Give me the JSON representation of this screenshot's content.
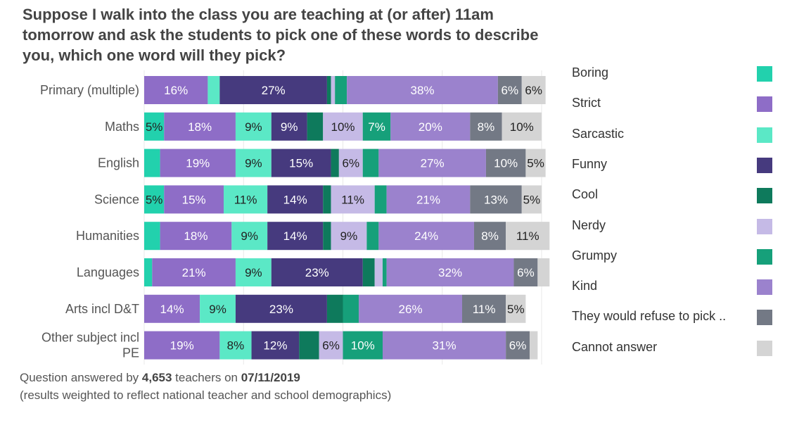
{
  "title": "Suppose I walk into the class you are teaching at (or after) 11am tomorrow and ask the students to pick one of these words to describe you, which one word will they pick?",
  "footer": {
    "line1_prefix": "Question answered by ",
    "count": "4,653",
    "line1_mid": " teachers on ",
    "date": "07/11/2019",
    "line2": "(results weighted to reflect national teacher and school demographics)"
  },
  "chart_data": {
    "type": "bar",
    "orientation": "horizontal",
    "stacked": true,
    "unit": "%",
    "xlim": [
      0,
      100
    ],
    "grid": true,
    "legend_position": "right",
    "categories": [
      "Primary (multiple)",
      "Maths",
      "English",
      "Science",
      "Humanities",
      "Languages",
      "Arts incl D&T",
      "Other subject incl PE"
    ],
    "series": [
      {
        "name": "Boring",
        "color": "#22D1AD",
        "values": [
          0,
          5,
          4,
          5,
          4,
          2,
          0,
          0
        ]
      },
      {
        "name": "Strict",
        "color": "#8E6DC7",
        "values": [
          16,
          18,
          19,
          15,
          18,
          21,
          14,
          19
        ]
      },
      {
        "name": "Sarcastic",
        "color": "#5BE8C6",
        "values": [
          3,
          9,
          9,
          11,
          9,
          9,
          9,
          8
        ]
      },
      {
        "name": "Funny",
        "color": "#463A7E",
        "values": [
          27,
          9,
          15,
          14,
          14,
          23,
          23,
          12
        ]
      },
      {
        "name": "Cool",
        "color": "#0E7A5C",
        "values": [
          1,
          4,
          2,
          2,
          2,
          3,
          4,
          5
        ]
      },
      {
        "name": "Nerdy",
        "color": "#C5BAE6",
        "values": [
          1,
          10,
          6,
          11,
          9,
          2,
          0,
          6
        ]
      },
      {
        "name": "Grumpy",
        "color": "#16A07A",
        "values": [
          3,
          7,
          4,
          3,
          3,
          1,
          4,
          10
        ]
      },
      {
        "name": "Kind",
        "color": "#9B82CD",
        "values": [
          38,
          20,
          27,
          21,
          24,
          32,
          26,
          31
        ]
      },
      {
        "name": "They would refuse to pick ..",
        "color": "#737985",
        "values": [
          6,
          8,
          10,
          13,
          8,
          6,
          11,
          6
        ]
      },
      {
        "name": "Cannot answer",
        "color": "#D4D4D4",
        "values": [
          6,
          10,
          5,
          5,
          11,
          3,
          5,
          2
        ]
      }
    ],
    "data_labels": [
      [
        null,
        "16%",
        null,
        "27%",
        null,
        null,
        null,
        "38%",
        "6%",
        "6%"
      ],
      [
        "5%",
        "18%",
        "9%",
        "9%",
        null,
        "10%",
        "7%",
        "20%",
        "8%",
        "10%"
      ],
      [
        null,
        "19%",
        "9%",
        "15%",
        null,
        "6%",
        null,
        "27%",
        "10%",
        "5%"
      ],
      [
        "5%",
        "15%",
        "11%",
        "14%",
        null,
        "11%",
        null,
        "21%",
        "13%",
        "5%"
      ],
      [
        null,
        "18%",
        "9%",
        "14%",
        null,
        "9%",
        null,
        "24%",
        "8%",
        "11%"
      ],
      [
        null,
        "21%",
        "9%",
        "23%",
        null,
        null,
        null,
        "32%",
        "6%",
        null
      ],
      [
        null,
        "14%",
        "9%",
        "23%",
        null,
        null,
        null,
        "26%",
        "11%",
        "5%"
      ],
      [
        null,
        "19%",
        "8%",
        "12%",
        null,
        "6%",
        "10%",
        "31%",
        "6%",
        null
      ]
    ],
    "category_label_lines": [
      [
        "Primary (multiple)"
      ],
      [
        "Maths"
      ],
      [
        "English"
      ],
      [
        "Science"
      ],
      [
        "Humanities"
      ],
      [
        "Languages"
      ],
      [
        "Arts incl D&T"
      ],
      [
        "Other subject incl",
        "PE"
      ]
    ]
  }
}
